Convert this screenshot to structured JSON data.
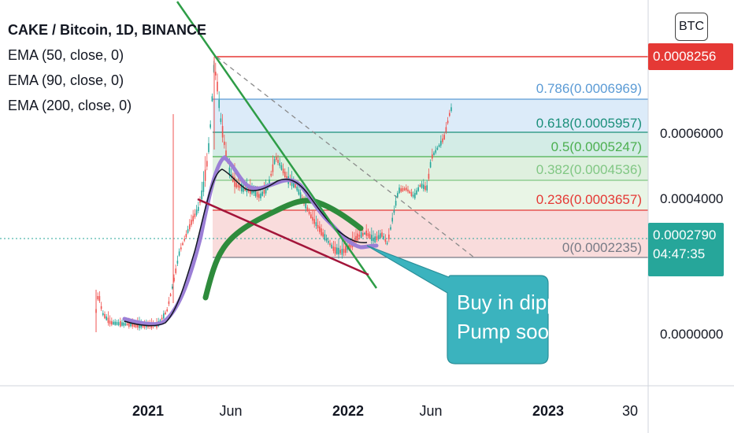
{
  "legend": {
    "title": "CAKE / Bitcoin, 1D, BINANCE",
    "ema50": "EMA (50, close, 0)",
    "ema90": "EMA (90, close, 0)",
    "ema200": "EMA (200, close, 0)"
  },
  "currency_button": "BTC",
  "price_tags": {
    "high": "0.0008256",
    "current_price": "0.0002790",
    "countdown": "04:47:35"
  },
  "colors": {
    "green_line": "#2e9d47",
    "red_line": "#e53935",
    "current_tag": "#26a69a",
    "callout": "#3bb3be",
    "ema50": "#131722",
    "ema90": "#9b7fd6",
    "ema200": "#2e8b3c"
  },
  "chart_data": {
    "type": "candlestick",
    "symbol": "CAKE / Bitcoin",
    "interval": "1D",
    "exchange": "BINANCE",
    "y_axis_ticks": [
      "0.0006000",
      "0.0004000",
      "0.0000000"
    ],
    "x_axis_ticks": [
      {
        "label": "2021",
        "bold": true
      },
      {
        "label": "Jun",
        "bold": false
      },
      {
        "label": "2022",
        "bold": true
      },
      {
        "label": "Jun",
        "bold": false
      },
      {
        "label": "2023",
        "bold": true
      },
      {
        "label": "30",
        "bold": false
      }
    ],
    "fib_levels": [
      {
        "label": "0.786(0.0006969)",
        "level": 0.786,
        "price": 0.0006969,
        "color": "#5b9bd5"
      },
      {
        "label": "0.618(0.0005957)",
        "level": 0.618,
        "price": 0.0005957,
        "color": "#1a8f7a"
      },
      {
        "label": "0.5(0.0005247)",
        "level": 0.5,
        "price": 0.0005247,
        "color": "#4caf50"
      },
      {
        "label": "0.382(0.0004536)",
        "level": 0.382,
        "price": 0.0004536,
        "color": "#81c784"
      },
      {
        "label": "0.236(0.0003657)",
        "level": 0.236,
        "price": 0.0003657,
        "color": "#e53935"
      },
      {
        "label": "0(0.0002235)",
        "level": 0,
        "price": 0.0002235,
        "color": "#787b86"
      }
    ],
    "annotation": "Buy in dipp\nPump soon",
    "annotation_lines": [
      "Buy in dipp",
      "Pump soon"
    ]
  }
}
